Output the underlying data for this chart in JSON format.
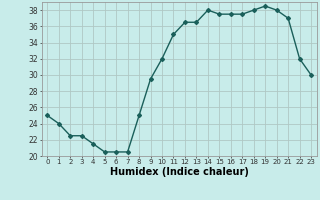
{
  "x": [
    0,
    1,
    2,
    3,
    4,
    5,
    6,
    7,
    8,
    9,
    10,
    11,
    12,
    13,
    14,
    15,
    16,
    17,
    18,
    19,
    20,
    21,
    22,
    23
  ],
  "y": [
    25,
    24,
    22.5,
    22.5,
    21.5,
    20.5,
    20.5,
    20.5,
    25,
    29.5,
    32,
    35,
    36.5,
    36.5,
    38,
    37.5,
    37.5,
    37.5,
    38,
    38.5,
    38,
    37,
    32,
    30
  ],
  "xlabel": "Humidex (Indice chaleur)",
  "ylim": [
    20,
    39
  ],
  "xlim": [
    -0.5,
    23.5
  ],
  "yticks": [
    20,
    22,
    24,
    26,
    28,
    30,
    32,
    34,
    36,
    38
  ],
  "xticks": [
    0,
    1,
    2,
    3,
    4,
    5,
    6,
    7,
    8,
    9,
    10,
    11,
    12,
    13,
    14,
    15,
    16,
    17,
    18,
    19,
    20,
    21,
    22,
    23
  ],
  "xtick_labels": [
    "0",
    "1",
    "2",
    "3",
    "4",
    "5",
    "6",
    "7",
    "8",
    "9",
    "10",
    "11",
    "12",
    "13",
    "14",
    "15",
    "16",
    "17",
    "18",
    "19",
    "20",
    "21",
    "22",
    "23"
  ],
  "line_color": "#1a5f5a",
  "marker": "D",
  "marker_size": 2.0,
  "line_width": 1.0,
  "bg_color": "#c8ecea",
  "grid_color": "#b0c8c4",
  "xlabel_fontsize": 7,
  "ytick_fontsize": 5.5,
  "xtick_fontsize": 5.0
}
